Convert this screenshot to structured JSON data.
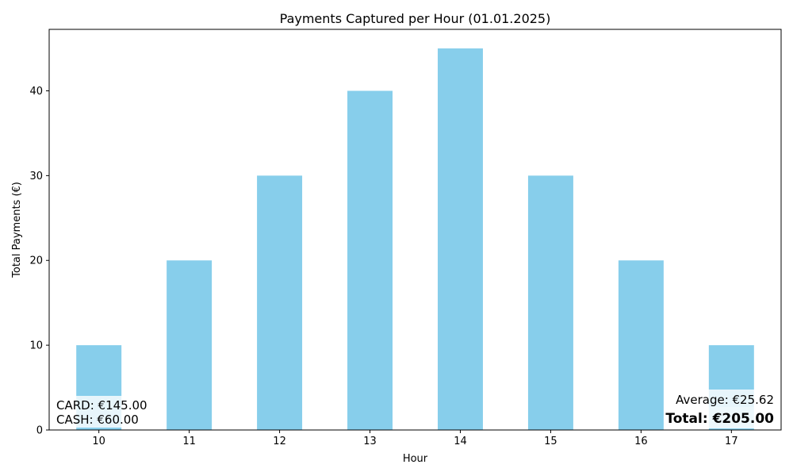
{
  "chart_data": {
    "type": "bar",
    "title": "Payments Captured per Hour (01.01.2025)",
    "xlabel": "Hour",
    "ylabel": "Total Payments (€)",
    "categories": [
      "10",
      "11",
      "12",
      "13",
      "14",
      "15",
      "16",
      "17"
    ],
    "values": [
      10,
      20,
      30,
      40,
      45,
      30,
      20,
      10
    ],
    "ylim": [
      0,
      47.25
    ],
    "yticks": [
      "0",
      "10",
      "20",
      "30",
      "40"
    ],
    "grid": false,
    "bar_color": "#87ceeb",
    "annotations": {
      "card": "CARD: €145.00",
      "cash": "CASH: €60.00",
      "average": "Average: €25.62",
      "total": "Total: €205.00"
    }
  }
}
